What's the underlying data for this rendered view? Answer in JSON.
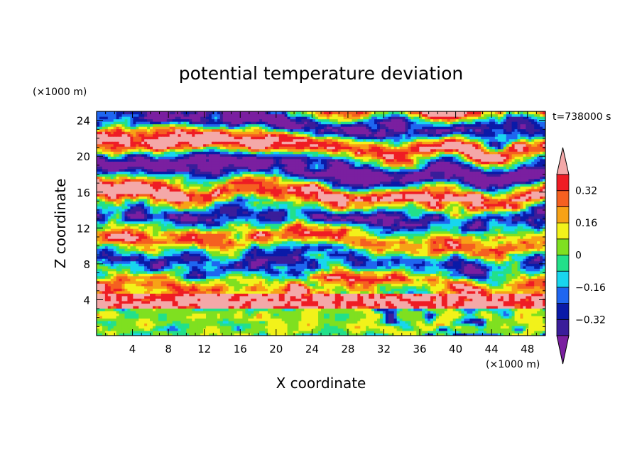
{
  "chart_data": {
    "type": "heatmap",
    "title": "potential temperature deviation",
    "xlabel": "X coordinate",
    "ylabel": "Z coordinate",
    "x_unit": "(×1000 m)",
    "y_unit": "(×1000 m)",
    "time_label": "t=738000 s",
    "xlim": [
      0,
      50
    ],
    "ylim": [
      0,
      25
    ],
    "x_ticks": [
      4,
      8,
      12,
      16,
      20,
      24,
      28,
      32,
      36,
      40,
      44,
      48
    ],
    "y_ticks": [
      4,
      8,
      12,
      16,
      20,
      24
    ],
    "x_tick_labels": [
      "4",
      "8",
      "12",
      "16",
      "20",
      "24",
      "28",
      "32",
      "36",
      "40",
      "44",
      "48"
    ],
    "y_tick_labels": [
      "4",
      "8",
      "12",
      "16",
      "20",
      "24"
    ],
    "colorbar": {
      "levels": [
        -0.4,
        -0.32,
        -0.24,
        -0.16,
        -0.08,
        0,
        0.08,
        0.16,
        0.24,
        0.32,
        0.4
      ],
      "tick_values": [
        -0.32,
        -0.16,
        0,
        0.16,
        0.32
      ],
      "tick_labels": [
        "−0.32",
        "−0.16",
        "0",
        "0.16",
        "0.32"
      ],
      "below_color": "#7a1fa0",
      "above_color": "#f4a8a8",
      "colors": [
        "#3a1d9a",
        "#0a1aa8",
        "#1f66f0",
        "#18d6ee",
        "#22e08a",
        "#7fe020",
        "#f2f21a",
        "#f7a216",
        "#f56020",
        "#ef1c24"
      ]
    },
    "grid": false,
    "legend": "colorbar-right"
  }
}
